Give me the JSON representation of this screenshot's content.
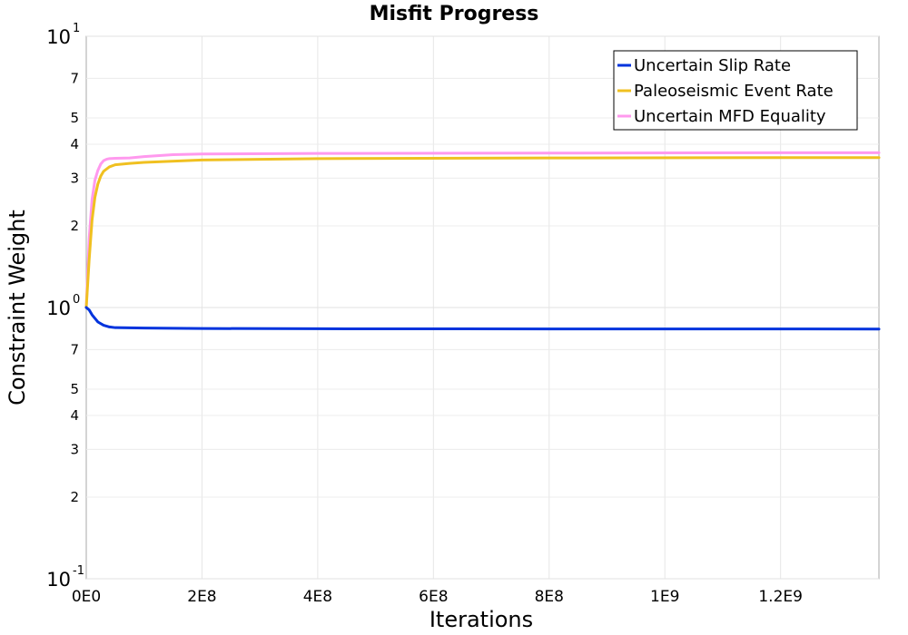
{
  "chart_data": {
    "type": "line",
    "title": "Misfit Progress",
    "xlabel": "Iterations",
    "ylabel": "Constraint Weight",
    "y_scale": "log",
    "xlim": [
      0,
      1370000000
    ],
    "ylim": [
      0.1,
      10
    ],
    "grid": true,
    "legend_position": "top-right",
    "x_ticks": [
      {
        "value": 0,
        "label": "0E0"
      },
      {
        "value": 200000000,
        "label": "2E8"
      },
      {
        "value": 400000000,
        "label": "4E8"
      },
      {
        "value": 600000000,
        "label": "6E8"
      },
      {
        "value": 800000000,
        "label": "8E8"
      },
      {
        "value": 1000000000,
        "label": "1E9"
      },
      {
        "value": 1200000000,
        "label": "1.2E9"
      }
    ],
    "y_major_ticks": [
      {
        "value": 10,
        "base": "10",
        "exp": "1"
      },
      {
        "value": 1,
        "base": "10",
        "exp": "0"
      },
      {
        "value": 0.1,
        "base": "10",
        "exp": "-1"
      }
    ],
    "y_minor_ticks": [
      {
        "value": 7,
        "label": "7"
      },
      {
        "value": 5,
        "label": "5"
      },
      {
        "value": 4,
        "label": "4"
      },
      {
        "value": 3,
        "label": "3"
      },
      {
        "value": 2,
        "label": "2"
      },
      {
        "value": 0.7,
        "label": "7"
      },
      {
        "value": 0.5,
        "label": "5"
      },
      {
        "value": 0.4,
        "label": "4"
      },
      {
        "value": 0.3,
        "label": "3"
      },
      {
        "value": 0.2,
        "label": "2"
      }
    ],
    "series": [
      {
        "name": "Uncertain Slip Rate",
        "color": "#0033dd",
        "x": [
          0,
          5000000,
          10000000,
          20000000,
          30000000,
          40000000,
          50000000,
          100000000,
          200000000,
          400000000,
          800000000,
          1200000000,
          1370000000
        ],
        "y": [
          1.0,
          0.98,
          0.94,
          0.885,
          0.86,
          0.848,
          0.843,
          0.84,
          0.837,
          0.835,
          0.834,
          0.834,
          0.833
        ]
      },
      {
        "name": "Paleoseismic Event Rate",
        "color": "#f0c020",
        "x": [
          0,
          5000000,
          10000000,
          15000000,
          20000000,
          25000000,
          30000000,
          40000000,
          50000000,
          75000000,
          100000000,
          200000000,
          400000000,
          800000000,
          1200000000,
          1370000000
        ],
        "y": [
          1.0,
          1.5,
          2.1,
          2.55,
          2.85,
          3.05,
          3.18,
          3.3,
          3.36,
          3.4,
          3.43,
          3.5,
          3.54,
          3.56,
          3.57,
          3.57
        ]
      },
      {
        "name": "Uncertain MFD Equality",
        "color": "#ff99ee",
        "x": [
          0,
          5000000,
          10000000,
          15000000,
          20000000,
          25000000,
          30000000,
          35000000,
          40000000,
          50000000,
          75000000,
          100000000,
          150000000,
          200000000,
          400000000,
          800000000,
          1200000000,
          1370000000
        ],
        "y": [
          1.0,
          1.8,
          2.5,
          2.95,
          3.2,
          3.38,
          3.48,
          3.52,
          3.54,
          3.55,
          3.56,
          3.6,
          3.66,
          3.68,
          3.7,
          3.71,
          3.72,
          3.72
        ]
      }
    ]
  }
}
